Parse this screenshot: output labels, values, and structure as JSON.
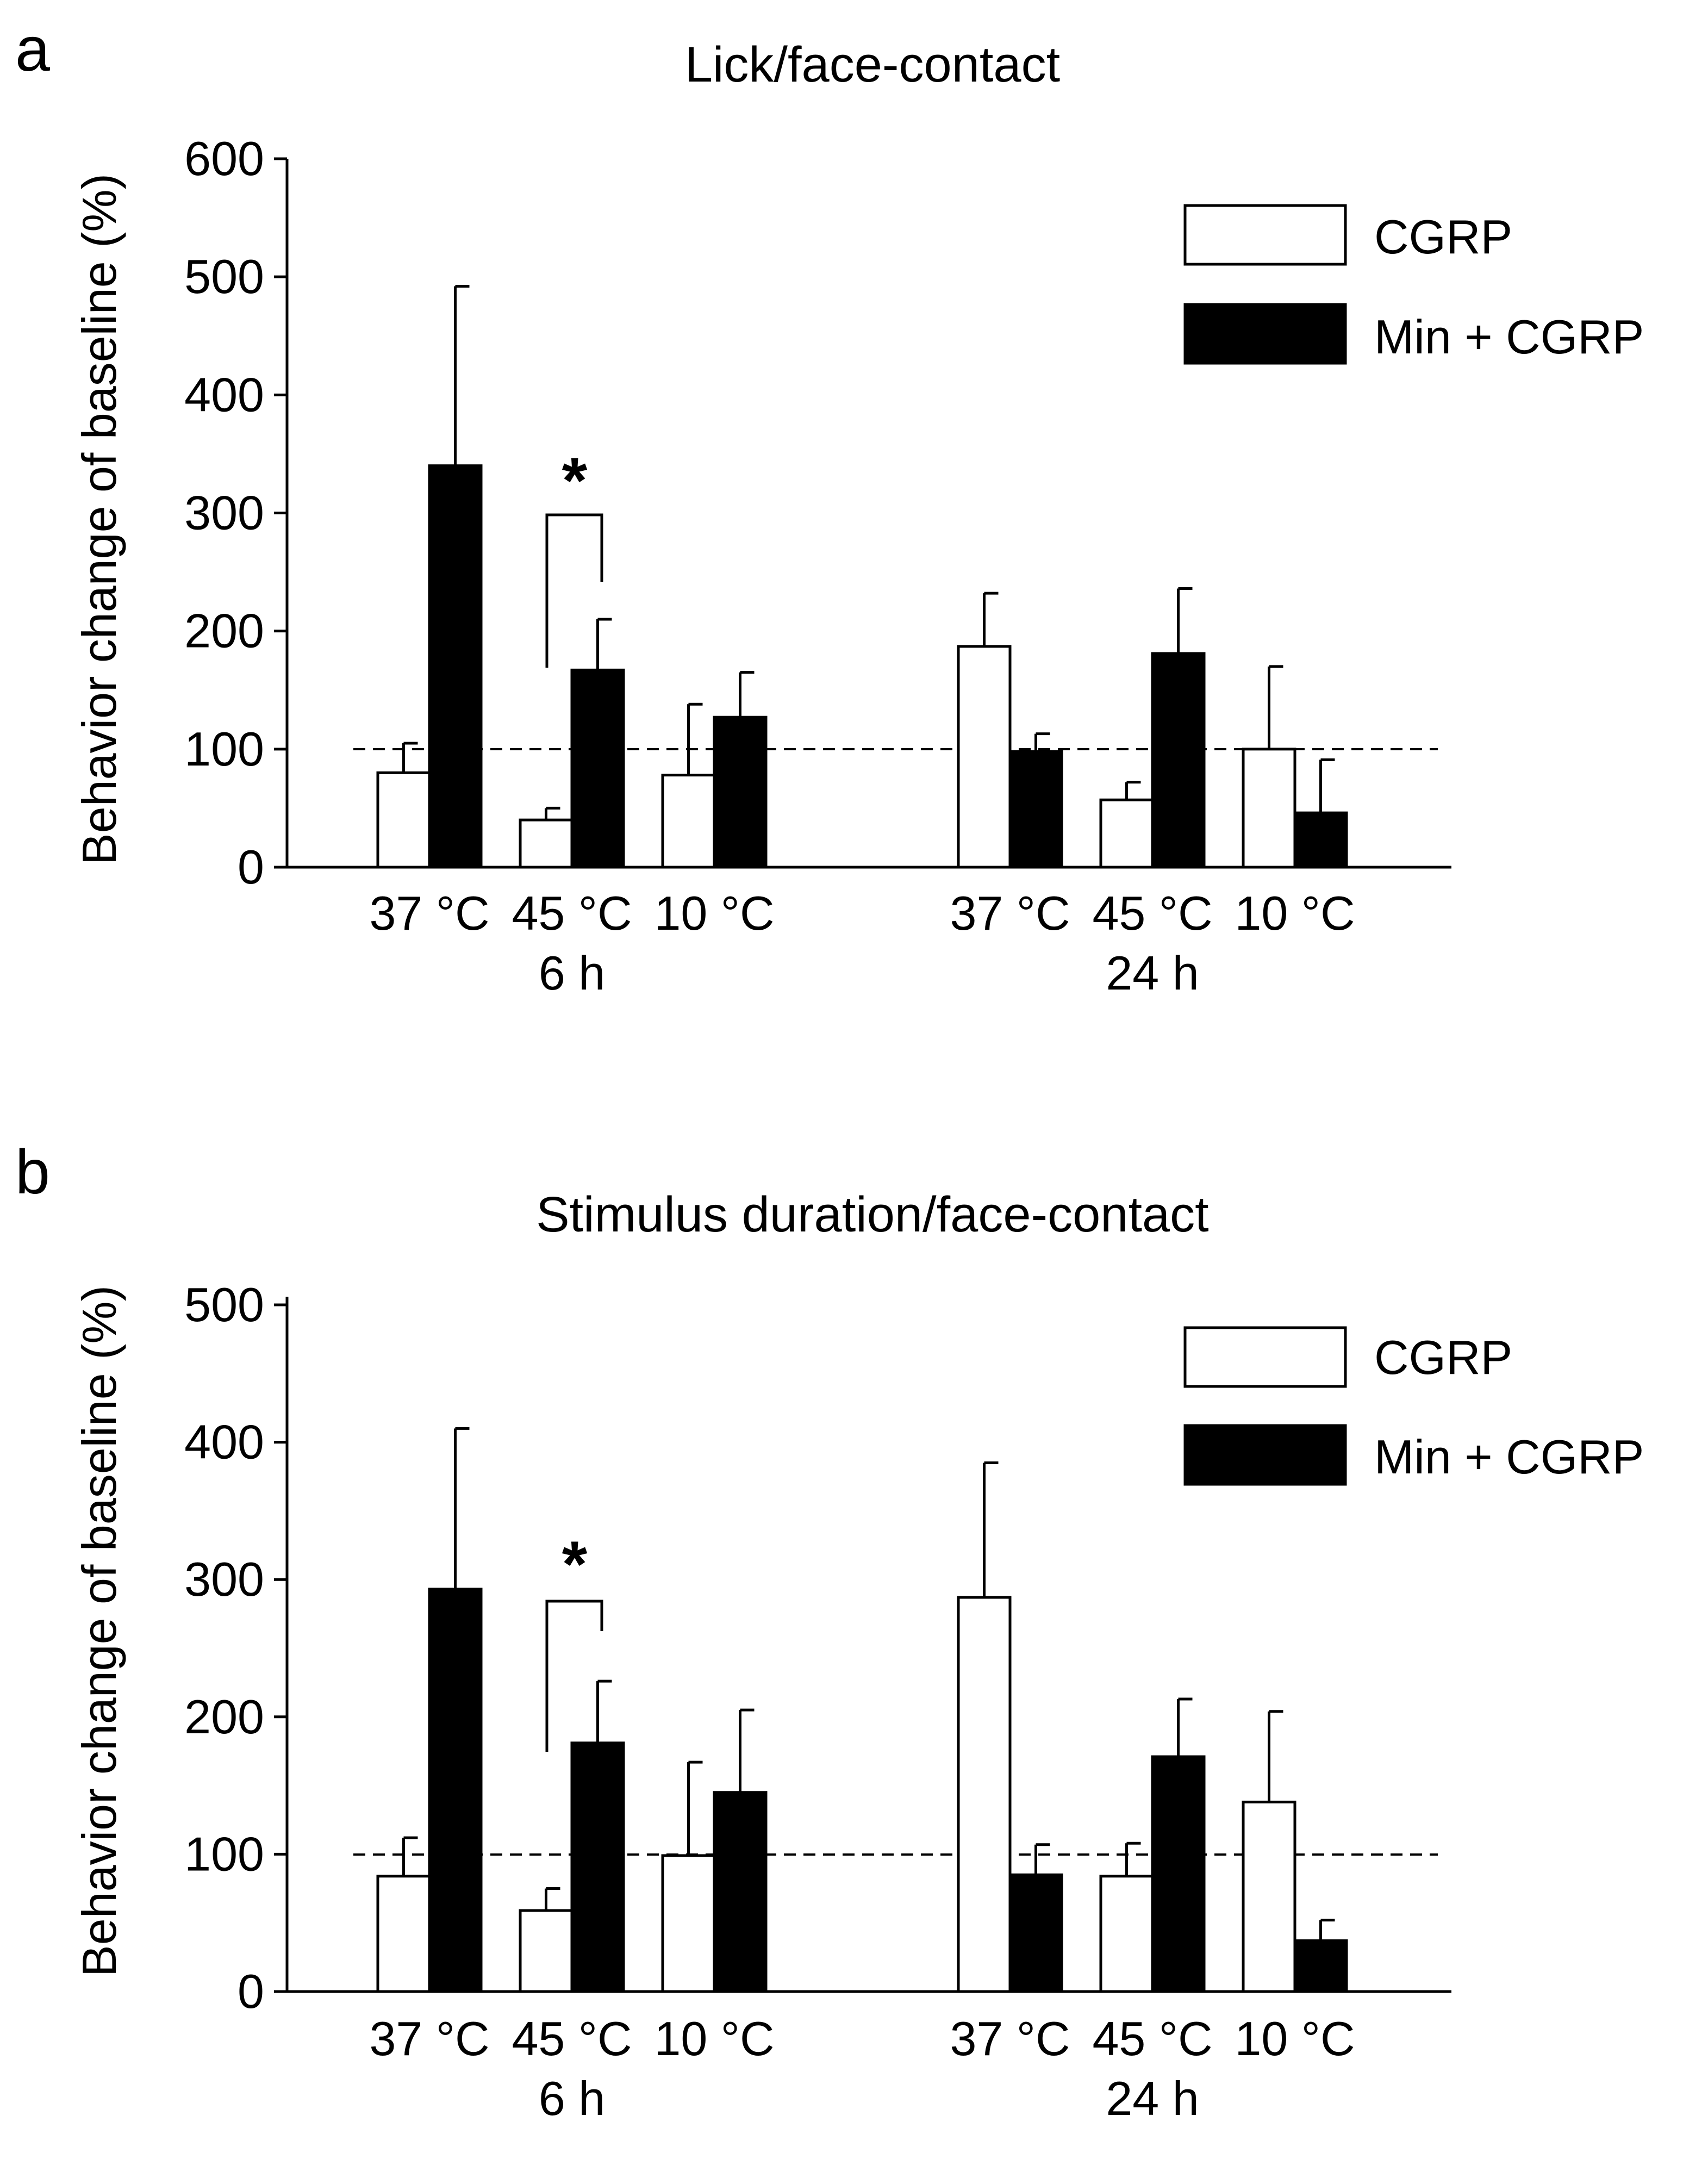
{
  "chart_data": [
    {
      "type": "bar",
      "panel": "a",
      "title": "Lick/face-contact",
      "ylabel": "Behavior  change of baseline  (%)",
      "xlabel": "",
      "ylim": [
        0,
        600
      ],
      "yticks": [
        0,
        100,
        200,
        300,
        400,
        500,
        600
      ],
      "reference_line": 100,
      "groups": [
        "6 h",
        "24 h"
      ],
      "categories": [
        "37 °C",
        "45 °C",
        "10 °C"
      ],
      "series": [
        {
          "name": "CGRP",
          "color": "#ffffff",
          "values": [
            [
              80,
              40,
              78
            ],
            [
              187,
              57,
              100
            ]
          ],
          "errors": [
            [
              25,
              10,
              60
            ],
            [
              45,
              15,
              70
            ]
          ]
        },
        {
          "name": "Min + CGRP",
          "color": "#000000",
          "values": [
            [
              340,
              167,
              127
            ],
            [
              98,
              181,
              46
            ]
          ],
          "errors": [
            [
              152,
              43,
              38
            ],
            [
              15,
              55,
              45
            ]
          ]
        }
      ],
      "legend": [
        "CGRP",
        "Min + CGRP"
      ],
      "legend_position": "top-right",
      "significance": {
        "group": 0,
        "category": 1,
        "label": "*"
      }
    },
    {
      "type": "bar",
      "panel": "b",
      "title": "Stimulus duration/face-contact",
      "ylabel": "Behavior  change of baseline  (%)",
      "xlabel": "",
      "ylim": [
        0,
        500
      ],
      "yticks": [
        0,
        100,
        200,
        300,
        400,
        500
      ],
      "reference_line": 100,
      "groups": [
        "6 h",
        "24 h"
      ],
      "categories": [
        "37 °C",
        "45 °C",
        "10 °C"
      ],
      "series": [
        {
          "name": "CGRP",
          "color": "#ffffff",
          "values": [
            [
              84,
              59,
              99
            ],
            [
              287,
              84,
              138
            ]
          ],
          "errors": [
            [
              28,
              16,
              68
            ],
            [
              98,
              24,
              66
            ]
          ]
        },
        {
          "name": "Min + CGRP",
          "color": "#000000",
          "values": [
            [
              293,
              181,
              145
            ],
            [
              85,
              171,
              37
            ]
          ],
          "errors": [
            [
              117,
              45,
              60
            ],
            [
              22,
              42,
              15
            ]
          ]
        }
      ],
      "legend": [
        "CGRP",
        "Min + CGRP"
      ],
      "legend_position": "top-right",
      "significance": {
        "group": 0,
        "category": 1,
        "label": "*"
      }
    }
  ]
}
